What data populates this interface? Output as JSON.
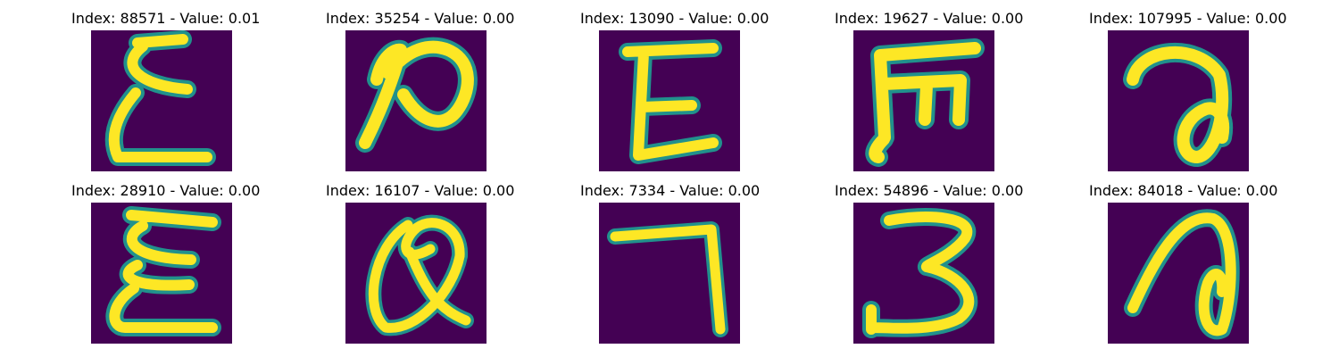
{
  "panels": [
    {
      "title": "Index: 88571 - Value: 0.01"
    },
    {
      "title": "Index: 35254 - Value: 0.00"
    },
    {
      "title": "Index: 13090 - Value: 0.00"
    },
    {
      "title": "Index: 19627 - Value: 0.00"
    },
    {
      "title": "Index: 107995 - Value: 0.00"
    },
    {
      "title": "Index: 28910 - Value: 0.00"
    },
    {
      "title": "Index: 16107 - Value: 0.00"
    },
    {
      "title": "Index: 7334 - Value: 0.00"
    },
    {
      "title": "Index: 54896 - Value: 0.00"
    },
    {
      "title": "Index: 84018 - Value: 0.00"
    }
  ],
  "colors": {
    "background": "#440154",
    "stroke_edge": "#21918c",
    "stroke_core": "#fde725"
  }
}
